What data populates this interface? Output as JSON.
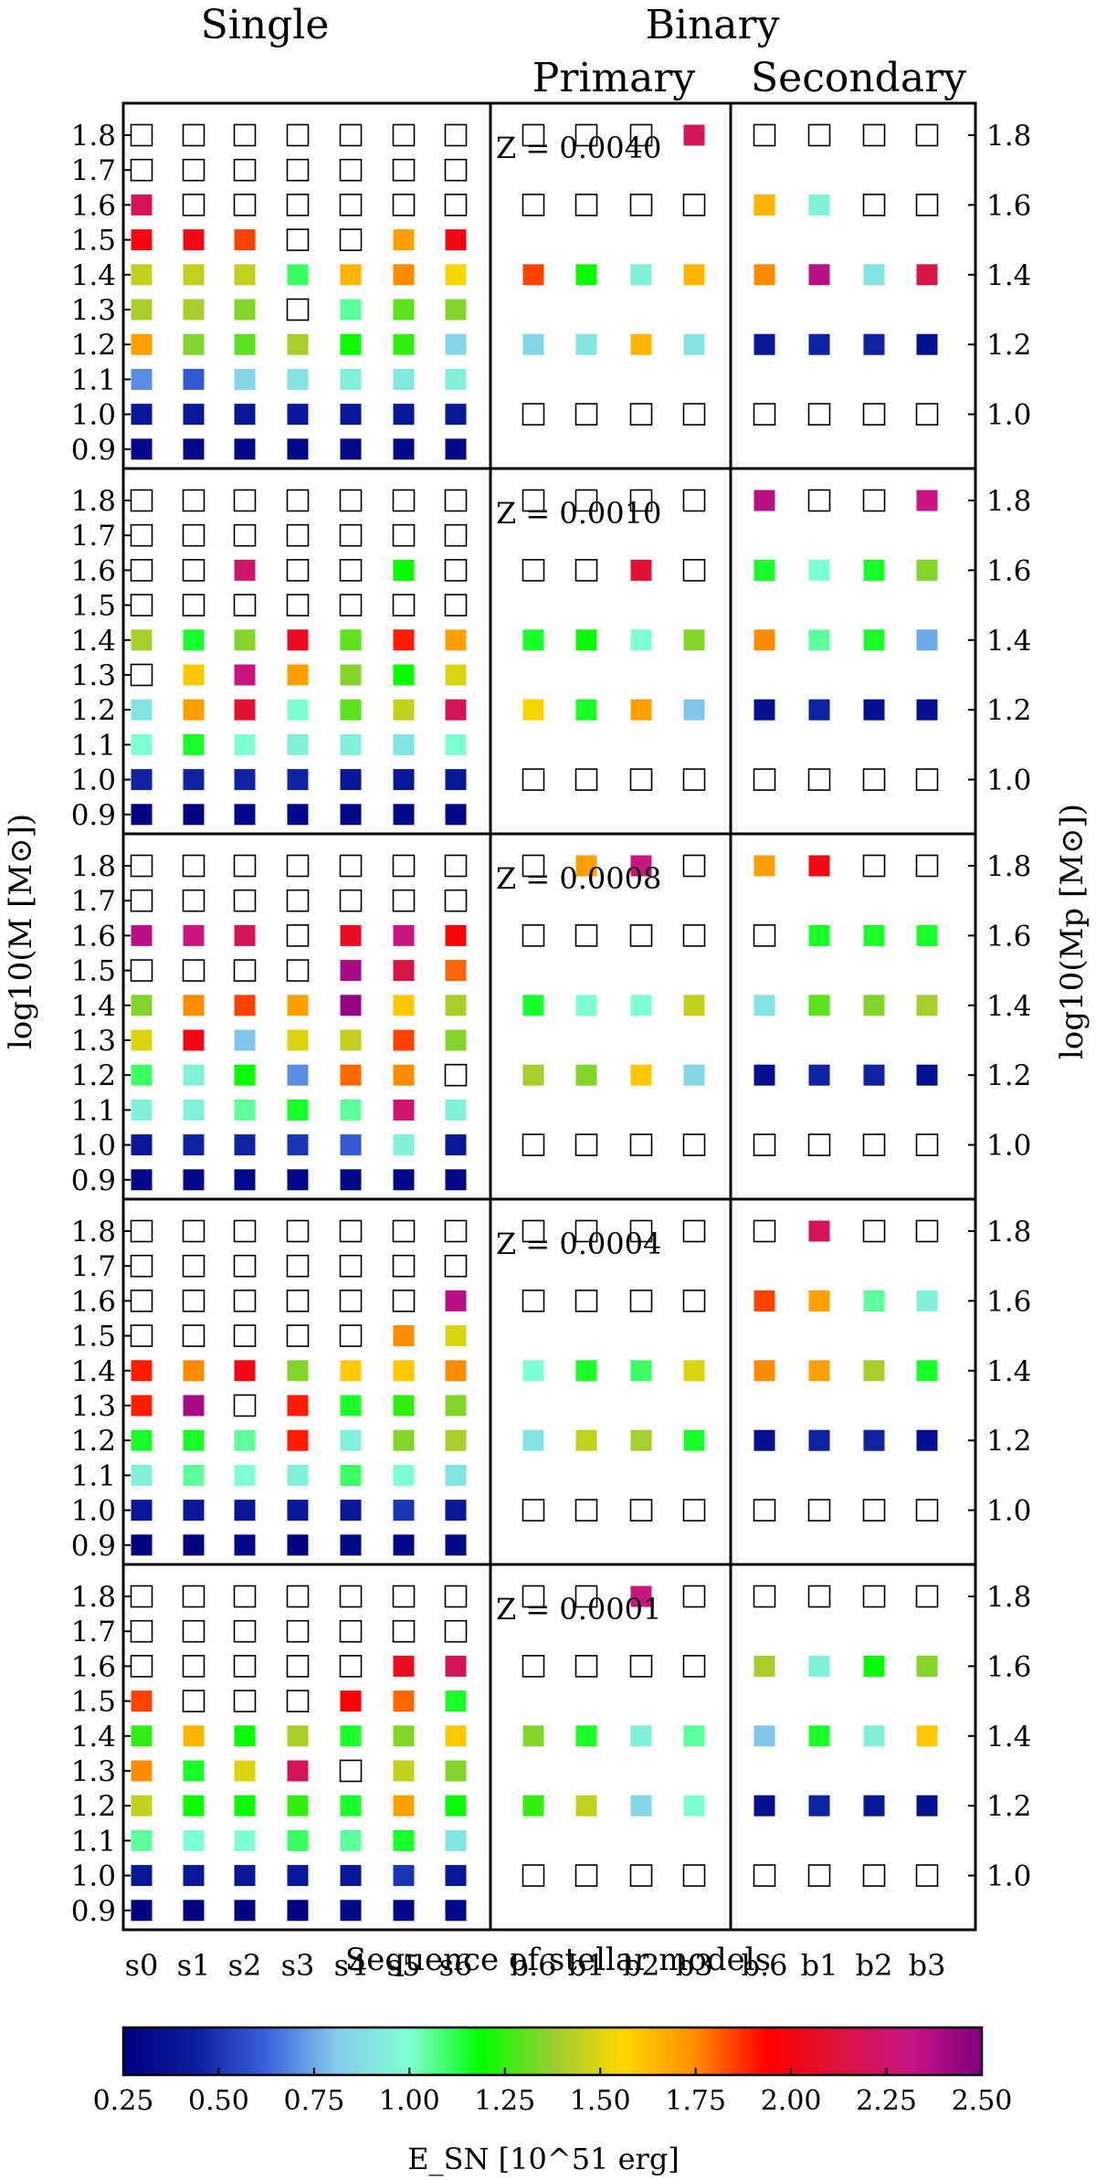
{
  "chart_data": {
    "type": "heatmap",
    "headers": {
      "single": "Single",
      "binary": "Binary",
      "primary": "Primary",
      "secondary": "Secondary"
    },
    "xlabel": "Sequence of stellar models",
    "ylabel_left": "log10(M [M⊙])",
    "ylabel_right": "log10(Mp [M⊙])",
    "single_columns": [
      "s0",
      "s1",
      "s2",
      "s3",
      "s4",
      "s5",
      "s6"
    ],
    "binary_columns": [
      "b.6",
      "b1",
      "b2",
      "b3"
    ],
    "single_mass_ticks": [
      "0.9",
      "1.0",
      "1.1",
      "1.2",
      "1.3",
      "1.4",
      "1.5",
      "1.6",
      "1.7",
      "1.8"
    ],
    "binary_mass_ticks": [
      "1.0",
      "1.2",
      "1.4",
      "1.6",
      "1.8"
    ],
    "colorbar": {
      "label": "E_SN [10^51 erg]",
      "range": [
        0.25,
        2.5
      ],
      "ticks": [
        "0.25",
        "0.50",
        "0.75",
        "1.00",
        "1.25",
        "1.50",
        "1.75",
        "2.00",
        "2.25",
        "2.50"
      ],
      "stops": [
        "#000080",
        "#0c1d9e",
        "#3a62dc",
        "#87ccec",
        "#7fffd4",
        "#00ff00",
        "#9acd32",
        "#ffd700",
        "#ff8c00",
        "#ff0000",
        "#dc143c",
        "#c71585",
        "#800080"
      ]
    },
    "note": "values in 10^51 erg; null = hollow square (no explosion)",
    "panels": [
      {
        "label_z": "Z = 0.0040",
        "single": [
          [
            0.3,
            0.3,
            0.3,
            0.3,
            0.3,
            0.3,
            0.3
          ],
          [
            0.4,
            0.4,
            0.4,
            0.4,
            0.4,
            0.4,
            0.4
          ],
          [
            0.7,
            0.6,
            0.85,
            0.9,
            0.95,
            0.92,
            0.95
          ],
          [
            1.7,
            1.35,
            1.3,
            1.4,
            1.2,
            1.25,
            0.85
          ],
          [
            1.4,
            1.4,
            1.35,
            null,
            1.05,
            1.3,
            1.35
          ],
          [
            1.45,
            1.45,
            1.45,
            1.1,
            1.65,
            1.75,
            1.55
          ],
          [
            2.0,
            2.0,
            1.85,
            null,
            null,
            1.7,
            2.0
          ],
          [
            2.2,
            null,
            null,
            null,
            null,
            null,
            null
          ],
          [
            null,
            null,
            null,
            null,
            null,
            null,
            null
          ],
          [
            null,
            null,
            null,
            null,
            null,
            null,
            null
          ]
        ],
        "primary": [
          [
            null,
            null,
            null,
            null
          ],
          [
            0.85,
            0.9,
            1.65,
            0.9
          ],
          [
            1.85,
            1.2,
            0.95,
            1.65
          ],
          [
            null,
            null,
            null,
            null
          ],
          [
            null,
            null,
            null,
            2.2
          ]
        ],
        "secondary": [
          [
            null,
            null,
            null,
            null
          ],
          [
            0.4,
            0.45,
            0.45,
            0.35
          ],
          [
            1.75,
            2.35,
            0.9,
            2.15
          ],
          [
            1.65,
            0.95,
            null,
            null
          ],
          [
            null,
            null,
            null,
            null
          ]
        ]
      },
      {
        "label_z": "Z = 0.0010",
        "single": [
          [
            0.25,
            0.25,
            0.3,
            0.3,
            0.3,
            0.3,
            0.3
          ],
          [
            0.45,
            0.45,
            0.45,
            0.45,
            0.4,
            0.4,
            0.4
          ],
          [
            1.0,
            1.15,
            1.0,
            0.95,
            0.95,
            0.9,
            1.0
          ],
          [
            0.9,
            1.7,
            2.1,
            1.0,
            1.3,
            1.45,
            2.2
          ],
          [
            null,
            1.6,
            2.3,
            1.7,
            1.35,
            1.2,
            1.5
          ],
          [
            1.4,
            1.15,
            1.35,
            2.05,
            1.3,
            1.9,
            1.7
          ],
          [
            null,
            null,
            null,
            null,
            null,
            null,
            null
          ],
          [
            null,
            null,
            2.25,
            null,
            null,
            1.2,
            null
          ],
          [
            null,
            null,
            null,
            null,
            null,
            null,
            null
          ],
          [
            null,
            null,
            null,
            null,
            null,
            null,
            null
          ]
        ],
        "primary": [
          [
            null,
            null,
            null,
            null
          ],
          [
            1.55,
            1.15,
            1.7,
            0.8
          ],
          [
            1.15,
            1.2,
            1.0,
            1.35
          ],
          [
            null,
            null,
            2.1,
            null
          ],
          [
            null,
            null,
            null,
            null
          ]
        ],
        "secondary": [
          [
            null,
            null,
            null,
            null
          ],
          [
            0.35,
            0.45,
            0.35,
            0.35
          ],
          [
            1.75,
            1.05,
            1.15,
            0.75
          ],
          [
            1.15,
            1.0,
            1.15,
            1.35
          ],
          [
            2.35,
            null,
            null,
            2.3
          ]
        ]
      },
      {
        "label_z": "Z = 0.0008",
        "single": [
          [
            0.3,
            0.3,
            0.3,
            0.3,
            0.3,
            0.3,
            0.3
          ],
          [
            0.4,
            0.45,
            0.45,
            0.5,
            0.6,
            0.95,
            0.4
          ],
          [
            0.95,
            0.95,
            1.05,
            1.15,
            1.05,
            2.25,
            0.95
          ],
          [
            1.1,
            0.95,
            1.2,
            0.7,
            1.8,
            1.75,
            null
          ],
          [
            1.5,
            2.0,
            0.8,
            1.5,
            1.45,
            1.85,
            1.35
          ],
          [
            1.35,
            1.75,
            1.85,
            1.7,
            2.45,
            1.6,
            1.4
          ],
          [
            null,
            null,
            null,
            null,
            2.4,
            2.15,
            1.8
          ],
          [
            2.35,
            2.3,
            2.2,
            null,
            2.05,
            2.3,
            1.95
          ],
          [
            null,
            null,
            null,
            null,
            null,
            null,
            null
          ],
          [
            null,
            null,
            null,
            null,
            null,
            null,
            null
          ]
        ],
        "primary": [
          [
            null,
            null,
            null,
            null
          ],
          [
            1.4,
            1.35,
            1.6,
            0.85
          ],
          [
            1.15,
            1.0,
            1.0,
            1.45
          ],
          [
            null,
            null,
            null,
            null
          ],
          [
            null,
            1.7,
            2.3,
            null
          ]
        ],
        "secondary": [
          [
            null,
            null,
            null,
            null
          ],
          [
            0.35,
            0.45,
            0.45,
            0.35
          ],
          [
            0.9,
            1.3,
            1.35,
            1.4
          ],
          [
            null,
            1.15,
            1.15,
            1.15
          ],
          [
            1.7,
            2.0,
            null,
            null
          ]
        ]
      },
      {
        "label_z": "Z = 0.0004",
        "single": [
          [
            0.25,
            0.25,
            0.3,
            0.25,
            0.3,
            0.3,
            0.3
          ],
          [
            0.4,
            0.4,
            0.4,
            0.4,
            0.4,
            0.5,
            0.4
          ],
          [
            0.95,
            1.05,
            1.0,
            0.95,
            1.1,
            1.0,
            0.9
          ],
          [
            1.15,
            1.15,
            1.05,
            1.9,
            0.95,
            1.35,
            1.4
          ],
          [
            1.9,
            2.4,
            null,
            1.9,
            1.15,
            1.25,
            1.35
          ],
          [
            1.9,
            1.75,
            2.0,
            1.35,
            1.6,
            1.6,
            1.75
          ],
          [
            null,
            null,
            null,
            null,
            null,
            1.75,
            1.5
          ],
          [
            null,
            null,
            null,
            null,
            null,
            null,
            2.35
          ],
          [
            null,
            null,
            null,
            null,
            null,
            null,
            null
          ],
          [
            null,
            null,
            null,
            null,
            null,
            null,
            null
          ]
        ],
        "primary": [
          [
            null,
            null,
            null,
            null
          ],
          [
            0.9,
            1.45,
            1.4,
            1.15
          ],
          [
            1.0,
            1.15,
            1.1,
            1.5
          ],
          [
            null,
            null,
            null,
            null
          ],
          [
            null,
            null,
            null,
            null
          ]
        ],
        "secondary": [
          [
            null,
            null,
            null,
            null
          ],
          [
            0.35,
            0.45,
            0.45,
            0.35
          ],
          [
            1.75,
            1.7,
            1.4,
            1.15
          ],
          [
            1.85,
            1.7,
            1.05,
            0.95
          ],
          [
            null,
            2.2,
            null,
            null
          ]
        ]
      },
      {
        "label_z": "Z = 0.0001",
        "single": [
          [
            0.25,
            0.25,
            0.25,
            0.25,
            0.3,
            0.3,
            0.3
          ],
          [
            0.4,
            0.4,
            0.4,
            0.4,
            0.4,
            0.5,
            0.4
          ],
          [
            1.05,
            1.0,
            1.0,
            1.1,
            1.05,
            1.15,
            0.9
          ],
          [
            1.45,
            1.2,
            1.2,
            1.25,
            1.15,
            1.7,
            1.2
          ],
          [
            1.75,
            1.15,
            1.5,
            2.2,
            null,
            1.45,
            1.35
          ],
          [
            1.25,
            1.65,
            1.2,
            1.4,
            1.15,
            1.35,
            1.6
          ],
          [
            1.85,
            null,
            null,
            null,
            1.95,
            1.8,
            1.15
          ],
          [
            null,
            null,
            null,
            null,
            null,
            2.05,
            2.2
          ],
          [
            null,
            null,
            null,
            null,
            null,
            null,
            null
          ],
          [
            null,
            null,
            null,
            null,
            null,
            null,
            null
          ]
        ],
        "primary": [
          [
            null,
            null,
            null,
            null
          ],
          [
            1.25,
            1.45,
            0.85,
            1.0
          ],
          [
            1.35,
            1.15,
            0.95,
            1.05
          ],
          [
            null,
            null,
            null,
            null
          ],
          [
            null,
            null,
            2.3,
            null
          ]
        ],
        "secondary": [
          [
            null,
            null,
            null,
            null
          ],
          [
            0.35,
            0.45,
            0.4,
            0.35
          ],
          [
            0.8,
            1.15,
            0.95,
            1.6
          ],
          [
            1.4,
            0.95,
            1.2,
            1.35
          ],
          [
            null,
            null,
            null,
            null
          ]
        ]
      }
    ]
  }
}
